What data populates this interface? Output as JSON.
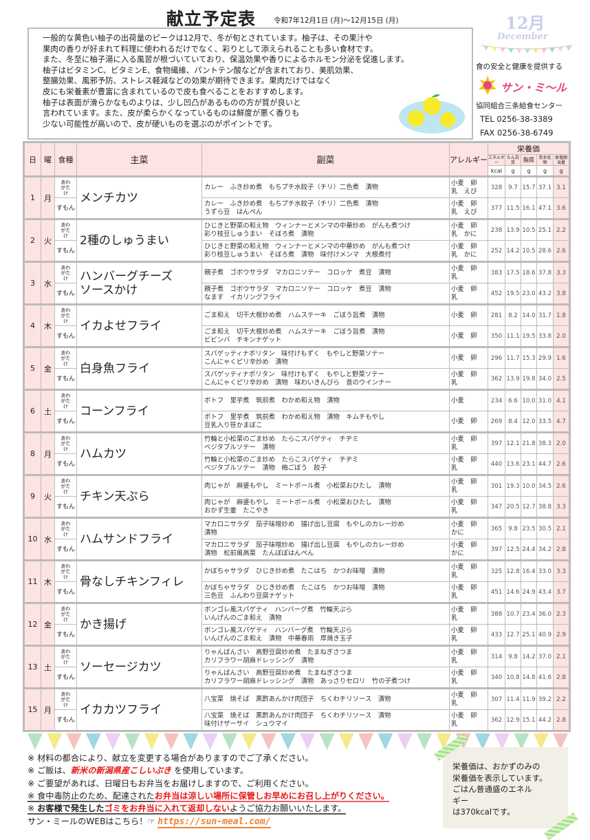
{
  "header": {
    "title": "献立予定表",
    "period": "令和7年12月1日 (月)～12月15日 (月)",
    "month": "12月",
    "month_en": "December"
  },
  "intro": [
    "一般的な黄色い柚子の出荷量のピークは12月で、冬が旬とされています。柚子は、その果汁や",
    "果肉の香りが好まれて料理に使われるだけでなく、彩りとして添えられることも多い食材です。",
    "また、冬至に柚子湯に入る風習が根づいていており、保温効果や香りによるホルモン分泌を促進します。",
    "柚子はビタミンC、ビタミンE、食物繊維、パントテン酸などが含まれており、美肌効果、",
    "整腸効果、風邪予防、ストレス軽減などの効果が期待できます。果肉だけではなく",
    "皮にも栄養素が豊富に含まれているので皮も食べることをおすすめします。",
    "柚子は表面が滑らかなものよりは、少し凹凸があるものの方が質が良いと",
    "言われています。また、皮が柔らかくなっているものは鮮度が悪く香りも",
    "少ない可能性が高いので、皮が硬いものを選ぶのがポイントです。"
  ],
  "company": {
    "tagline": "食の安全と健康を提供する",
    "logo": "サン・ミ～ル",
    "name": "協同組合三条給食センター",
    "tel": "TEL 0256-38-3389",
    "fax": "FAX 0256-38-6749",
    "brand_color": "#e8457f"
  },
  "table_header": {
    "day": "日",
    "dow": "曜",
    "type": "食種",
    "main": "主菜",
    "side": "副菜",
    "allergy": "アレルギー",
    "nutrition": "栄養価",
    "energy": "エネルギー",
    "protein": "たん白質",
    "fat": "脂質",
    "carb": "炭水化物",
    "salt": "食塩相当量",
    "u_kcal": "kcal",
    "u_g": "g"
  },
  "days": [
    {
      "day": "1",
      "dow": "月",
      "main": "メンチカツ",
      "rows": [
        {
          "type": "あわがたけ",
          "side": "カレー　ふき炒め煮　もちプチ水餃子（チリ）二色煮　漬物",
          "allergy": "小麦　卵\n乳　えび",
          "n": [
            "328",
            "9.7",
            "15.7",
            "37.1",
            "3.1"
          ]
        },
        {
          "type": "すもん",
          "side": "カレー　ふき炒め煮　もちプチ水餃子（チリ）二色煮　漬物\nうずら豆　はんぺん",
          "allergy": "小麦　卵\n乳　えび",
          "n": [
            "377",
            "11.5",
            "16.1",
            "47.1",
            "3.6"
          ]
        }
      ]
    },
    {
      "day": "2",
      "dow": "火",
      "main": "2種のしゅうまい",
      "rows": [
        {
          "type": "あわがたけ",
          "side": "ひじきと野菜の和え物　ウィンナーとメンマの中華炒め　がんも煮つけ\n彩り枝豆しゅうまい　そぼろ煮　漬物",
          "allergy": "小麦　卵\n乳　かに",
          "n": [
            "238",
            "13.9",
            "10.5",
            "25.1",
            "2.2"
          ]
        },
        {
          "type": "すもん",
          "side": "ひじきと野菜の和え物　ウィンナーとメンマの中華炒め　がんも煮つけ\n彩り枝豆しゅうまい　そぼろ煮　漬物　味付けメンマ　大根煮付",
          "allergy": "小麦　卵\n乳　かに",
          "n": [
            "252",
            "14.2",
            "10.5",
            "28.6",
            "2.6"
          ]
        }
      ]
    },
    {
      "day": "3",
      "dow": "水",
      "main": "ハンバーグチーズ\nソースかけ",
      "rows": [
        {
          "type": "あわがたけ",
          "side": "親子煮　ゴボウサラダ　マカロニソテー　コロッケ　煮豆　漬物",
          "allergy": "小麦　卵\n乳",
          "n": [
            "383",
            "17.5",
            "18.6",
            "37.8",
            "3.3"
          ]
        },
        {
          "type": "すもん",
          "side": "親子煮　ゴボウサラダ　マカロニソテー　コロッケ　煮豆　漬物\nなます　イカリングフライ",
          "allergy": "小麦　卵\n乳",
          "n": [
            "452",
            "19.5",
            "23.0",
            "43.2",
            "3.8"
          ]
        }
      ]
    },
    {
      "day": "4",
      "dow": "木",
      "main": "イカよせフライ",
      "rows": [
        {
          "type": "あわがたけ",
          "side": "ごま和え　切干大根炒め煮　ハムステーキ　ごぼう旨煮　漬物",
          "allergy": "小麦　卵",
          "n": [
            "281",
            "8.2",
            "14.0",
            "31.7",
            "1.8"
          ]
        },
        {
          "type": "すもん",
          "side": "ごま和え　切干大根炒め煮　ハムステーキ　ごぼう旨煮　漬物\nビビンバ　チキンナゲット",
          "allergy": "小麦　卵",
          "n": [
            "350",
            "11.1",
            "19.5",
            "33.8",
            "2.0"
          ]
        }
      ]
    },
    {
      "day": "5",
      "dow": "金",
      "main": "白身魚フライ",
      "rows": [
        {
          "type": "あわがたけ",
          "side": "スパゲッティナポリタン　味付けもずく　もやしと野菜ソテー\nこんにゃくピリ辛炒め　漬物",
          "allergy": "小麦　卵",
          "n": [
            "296",
            "11.7",
            "15.3",
            "29.9",
            "1.6"
          ]
        },
        {
          "type": "すもん",
          "side": "スパゲッティナポリタン　味付けもずく　もやしと野菜ソテー\nこんにゃくピリ辛炒め　漬物　味わいきんぴら　昔のウインナー",
          "allergy": "小麦　卵\n乳",
          "n": [
            "362",
            "13.9",
            "19.8",
            "34.0",
            "2.5"
          ]
        }
      ]
    },
    {
      "day": "6",
      "dow": "土",
      "main": "コーンフライ",
      "rows": [
        {
          "type": "あわがたけ",
          "side": "ポトフ　里芋煮　筑前煮　わかめ和え物　漬物",
          "allergy": "小麦",
          "n": [
            "234",
            "6.6",
            "10.0",
            "31.0",
            "4.1"
          ]
        },
        {
          "type": "すもん",
          "side": "ポトフ　里芋煮　筑前煮　わかめ和え物　漬物　キムチもやし\n豆乳入り笹かまぼこ",
          "allergy": "小麦　卵",
          "n": [
            "269",
            "8.4",
            "12.0",
            "33.5",
            "4.7"
          ]
        }
      ]
    },
    {
      "day": "8",
      "dow": "月",
      "main": "ハムカツ",
      "rows": [
        {
          "type": "あわがたけ",
          "side": "竹輪と小松菜のごま炒め　たらこスパゲティ　チヂミ\nベジタブルソテー　漬物",
          "allergy": "小麦　卵\n乳",
          "n": [
            "397",
            "12.1",
            "21.8",
            "38.3",
            "2.0"
          ]
        },
        {
          "type": "すもん",
          "side": "竹輪と小松菜のごま炒め　たらこスパゲティ　チヂミ\nベジタブルソテー　漬物　梅ごぼう　餃子",
          "allergy": "小麦　卵\n乳",
          "n": [
            "440",
            "13.6",
            "23.1",
            "44.7",
            "2.6"
          ]
        }
      ]
    },
    {
      "day": "9",
      "dow": "火",
      "main": "チキン天ぷら",
      "rows": [
        {
          "type": "あわがたけ",
          "side": "肉じゃが　麻婆もやし　ミートボール煮　小松菜おひたし　漬物",
          "allergy": "小麦　卵\n乳",
          "n": [
            "301",
            "19.3",
            "10.0",
            "34.5",
            "2.6"
          ]
        },
        {
          "type": "すもん",
          "side": "肉じゃが　麻婆もやし　ミートボール煮　小松菜おひたし　漬物\nおかず生姜　たこやき",
          "allergy": "小麦　卵\n乳",
          "n": [
            "347",
            "20.5",
            "12.7",
            "38.8",
            "3.3"
          ]
        }
      ]
    },
    {
      "day": "10",
      "dow": "水",
      "main": "ハムサンドフライ",
      "rows": [
        {
          "type": "あわがたけ",
          "side": "マカロニサラダ　茄子味噌炒め　揚げ出し豆腐　もやしのカレー炒め\n漬物",
          "allergy": "小麦　卵\nかに",
          "n": [
            "365",
            "9.8",
            "23.5",
            "30.5",
            "2.1"
          ]
        },
        {
          "type": "すもん",
          "side": "マカロニサラダ　茄子味噌炒め　揚げ出し豆腐　もやしのカレー炒め\n漬物　松前風高菜　たんぽぽはんぺん",
          "allergy": "小麦　卵\nかに",
          "n": [
            "397",
            "12.5",
            "24.4",
            "34.2",
            "2.8"
          ]
        }
      ]
    },
    {
      "day": "11",
      "dow": "木",
      "main": "骨なしチキンフィレ",
      "rows": [
        {
          "type": "あわがたけ",
          "side": "かぼちゃサラダ　ひじき炒め煮　たこはち　かつお味噌　漬物",
          "allergy": "小麦　卵\n乳",
          "n": [
            "325",
            "12.8",
            "16.4",
            "33.0",
            "3.3"
          ]
        },
        {
          "type": "すもん",
          "side": "かぼちゃサラダ　ひじき炒め煮　たこはち　かつお味噌　漬物\n三色豆　ふんわり豆腐ナゲット",
          "allergy": "小麦　卵\n乳",
          "n": [
            "451",
            "14.6",
            "24.9",
            "43.4",
            "3.7"
          ]
        }
      ]
    },
    {
      "day": "12",
      "dow": "金",
      "main": "かき揚げ",
      "rows": [
        {
          "type": "あわがたけ",
          "side": "ボンゴレ風スパゲティ　ハンバーグ煮　竹輪天ぷら\nいんげんのごま和え　漬物",
          "allergy": "小麦　卵\n乳",
          "n": [
            "388",
            "10.7",
            "23.4",
            "36.0",
            "2.3"
          ]
        },
        {
          "type": "すもん",
          "side": "ボンゴレ風スパゲティ　ハンバーグ煮　竹輪天ぷら\nいんげんのごま和え　漬物　中華春雨　厚焼き玉子",
          "allergy": "小麦　卵\n乳",
          "n": [
            "433",
            "12.7",
            "25.1",
            "40.9",
            "2.9"
          ]
        }
      ]
    },
    {
      "day": "13",
      "dow": "土",
      "main": "ソーセージカツ",
      "rows": [
        {
          "type": "あわがたけ",
          "side": "りゃんばんさい　高野豆腐炒め煮　たまねぎさつま\nカリフラワー胡麻ドレッシング　漬物",
          "allergy": "小麦　卵\n乳",
          "n": [
            "314",
            "9.8",
            "14.2",
            "37.0",
            "2.1"
          ]
        },
        {
          "type": "すもん",
          "side": "りゃんばんさい　高野豆腐炒め煮　たまねぎさつま\nカリフラワー胡麻ドレッシング　漬物　あっさりセロリ　竹の子煮つけ",
          "allergy": "小麦　卵\n乳",
          "n": [
            "340",
            "10.8",
            "14.8",
            "41.6",
            "2.8"
          ]
        }
      ]
    },
    {
      "day": "15",
      "dow": "月",
      "main": "イカカツフライ",
      "rows": [
        {
          "type": "あわがたけ",
          "side": "八宝菜　焼そば　黒酢あんかけ肉団子　ちくわチリソース　漬物",
          "allergy": "小麦　卵\n乳",
          "n": [
            "307",
            "11.4",
            "11.9",
            "39.2",
            "2.2"
          ]
        },
        {
          "type": "すもん",
          "side": "八宝菜　焼そば　黒酢あんかけ肉団子　ちくわチリソース　漬物\n味付けザーサイ　シュウマイ",
          "allergy": "小麦　卵\n乳",
          "n": [
            "362",
            "12.9",
            "15.1",
            "44.2",
            "2.8"
          ]
        }
      ]
    }
  ],
  "notes": {
    "n1": "※ 材料の都合により、献立を変更する場合がありますのでご了承ください。",
    "n2a": "※ ご飯は、",
    "n2b": "新米の新潟県産こしいぶき",
    "n2c": " を使用しています。",
    "n3": "※ ご要望があれば、日曜日もお弁当をお届けしますので、ご利用ください。",
    "n4a": "※ 食中毒防止のため、配達された",
    "n4b": "お弁当は涼しい場所に保管しお早めにお召し上がりください。",
    "n5a": "※ ",
    "n5b": "お客様で発生した",
    "n5c": "ゴミをお弁当に入れて返却しない",
    "n5d": "ようご協力お願いいたします。",
    "web": "サン・ミールのWEBはこちら！☞",
    "url": "https://sun-meal.com/"
  },
  "sticky": [
    "栄養価は、おかずのみの",
    "栄養価を表示しています。",
    "ごはん普通盛のエネル",
    "ギー",
    "は370kcalです。"
  ],
  "colors": {
    "header_pink": "#fde3e3",
    "alert_red": "#e81818",
    "link_orange": "#f08030"
  }
}
